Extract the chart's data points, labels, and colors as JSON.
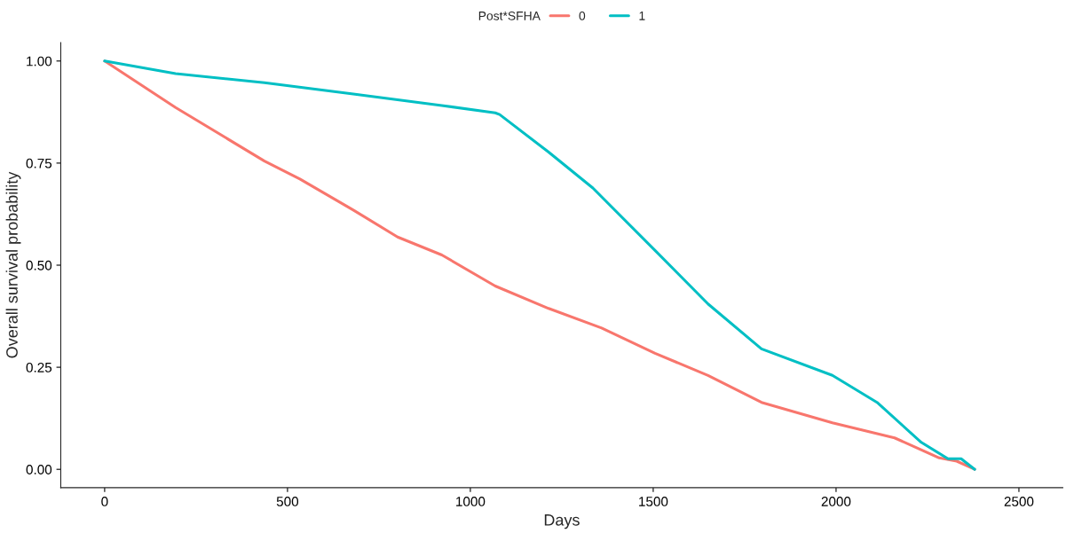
{
  "chart_data": {
    "type": "line",
    "xlabel": "Days",
    "ylabel": "Overall survival probability",
    "legend_title": "Post*SFHA",
    "legend": "top",
    "grid": false,
    "marker": "none",
    "line_style": "solid",
    "xlim": [
      -120,
      2620
    ],
    "ylim": [
      -0.045,
      1.045
    ],
    "xticks": [
      0,
      500,
      1000,
      1500,
      2000,
      2500
    ],
    "yticks": [
      {
        "value": 0,
        "label": "0.00"
      },
      {
        "value": 0.25,
        "label": "0.25"
      },
      {
        "value": 0.5,
        "label": "0.50"
      },
      {
        "value": 0.75,
        "label": "0.75"
      },
      {
        "value": 1,
        "label": "1.00"
      }
    ],
    "series": [
      {
        "name": "0",
        "color": "#f8766d",
        "x": [
          0,
          194,
          437,
          534,
          680,
          801,
          922,
          1068,
          1214,
          1359,
          1505,
          1650,
          1796,
          1990,
          2160,
          2282,
          2330,
          2379
        ],
        "values": [
          1.0,
          0.886,
          0.755,
          0.711,
          0.635,
          0.569,
          0.525,
          0.449,
          0.394,
          0.346,
          0.284,
          0.23,
          0.164,
          0.114,
          0.077,
          0.028,
          0.02,
          0.0
        ]
      },
      {
        "name": "1",
        "color": "#00bfc4",
        "x": [
          0,
          194,
          437,
          680,
          922,
          1068,
          1080,
          1214,
          1335,
          1505,
          1650,
          1796,
          1990,
          2112,
          2233,
          2306,
          2342,
          2379
        ],
        "values": [
          1.0,
          0.969,
          0.947,
          0.919,
          0.891,
          0.873,
          0.869,
          0.777,
          0.689,
          0.536,
          0.405,
          0.295,
          0.23,
          0.164,
          0.066,
          0.026,
          0.026,
          0.0
        ]
      }
    ]
  }
}
